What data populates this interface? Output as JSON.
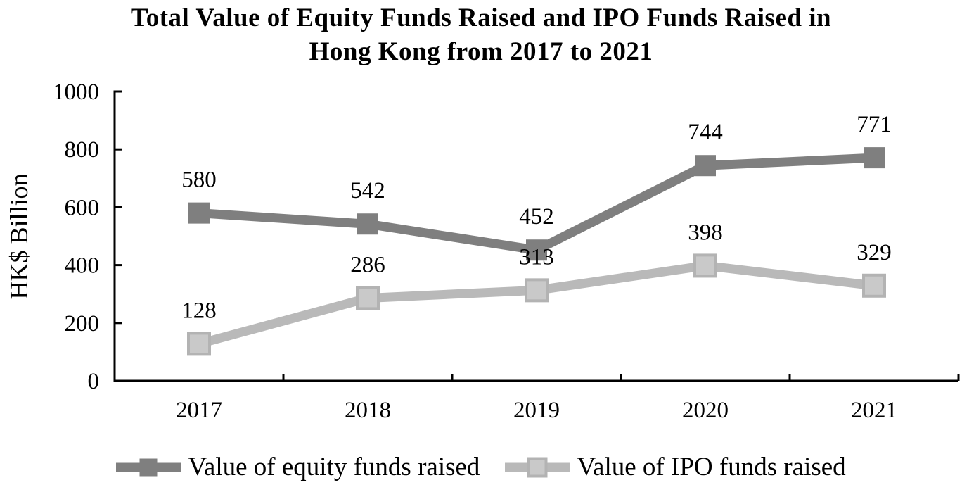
{
  "chart_data": {
    "type": "line",
    "title": "Total Value of Equity Funds Raised and IPO Funds Raised in Hong Kong from 2017 to 2021",
    "title_lines": [
      "Total Value of Equity Funds Raised and IPO Funds Raised in",
      "Hong Kong from 2017 to 2021"
    ],
    "xlabel": "",
    "ylabel": "HK$ Billion",
    "categories": [
      "2017",
      "2018",
      "2019",
      "2020",
      "2021"
    ],
    "series": [
      {
        "name": "Value of equity funds raised",
        "values": [
          580,
          542,
          452,
          744,
          771
        ],
        "color": "#7f7f7f",
        "marker": "square",
        "marker_fill": "#7f7f7f",
        "marker_stroke": "#7f7f7f"
      },
      {
        "name": "Value of IPO funds raised",
        "values": [
          128,
          286,
          313,
          398,
          329
        ],
        "color": "#b9b9b9",
        "marker": "square",
        "marker_fill": "#c9c9c9",
        "marker_stroke": "#b3b3b3"
      }
    ],
    "ylim": [
      0,
      1000
    ],
    "ytick_step": 200,
    "yticks": [
      0,
      200,
      400,
      600,
      800,
      1000
    ],
    "data_labels": true,
    "grid": false,
    "legend_position": "bottom",
    "axis_color": "#000000",
    "background": "#ffffff"
  }
}
